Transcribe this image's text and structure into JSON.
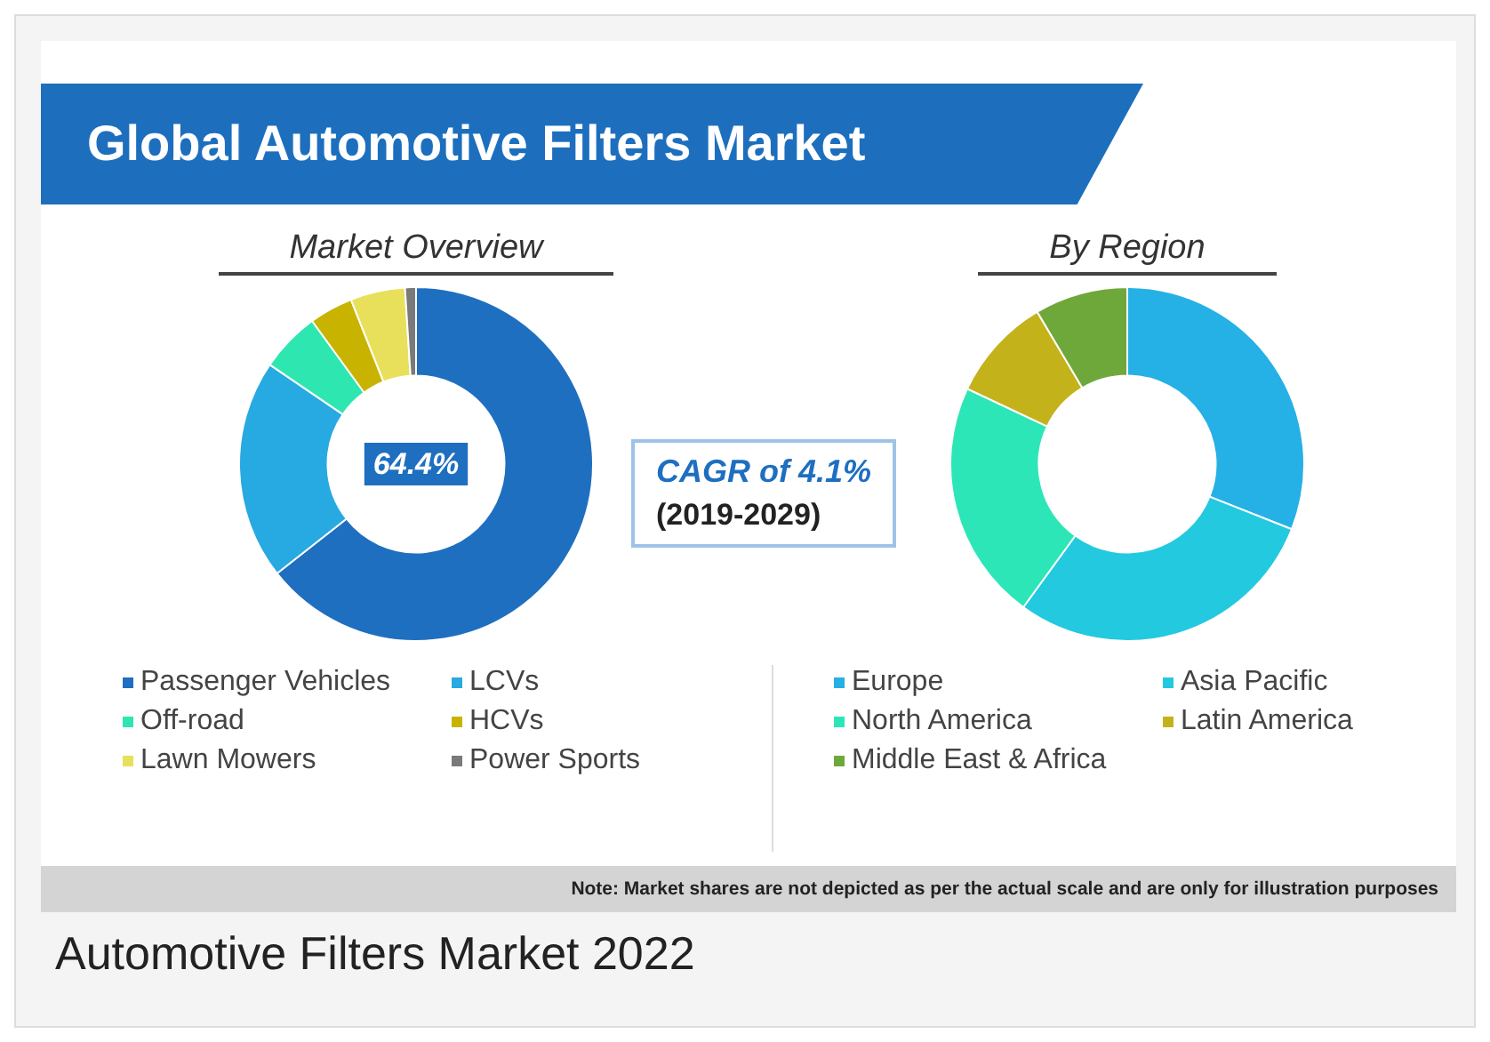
{
  "chart_data": [
    {
      "type": "donut",
      "title": "Global Automotive Filters Market",
      "subtitle": "Market Overview",
      "categories": [
        "Passenger Vehicles",
        "LCVs",
        "Off-road",
        "HCVs",
        "Lawn Mowers",
        "Power Sports"
      ],
      "values": [
        64.4,
        20.1,
        5.5,
        4,
        5,
        1
      ],
      "colors": [
        "#1e6fc0",
        "#27a9e1",
        "#2ee6b0",
        "#c8b400",
        "#e8e05a",
        "#7a7a7a"
      ],
      "value_labels": [
        "64.4%",
        null,
        null,
        null,
        null,
        null
      ],
      "legend": "bottom"
    },
    {
      "type": "other",
      "annotations": [
        "CAGR of 4.1%",
        "(2019-2029)"
      ]
    },
    {
      "type": "donut",
      "title": "By Region",
      "categories": [
        "Europe",
        "Asia Pacific",
        "North America",
        "Latin America",
        "Middle East & Africa"
      ],
      "values": [
        31,
        29,
        22,
        9.5,
        8.5
      ],
      "colors": [
        "#25b0e6",
        "#22c9df",
        "#2de6b8",
        "#c4b21a",
        "#6fa83a"
      ],
      "legend": "bottom",
      "annotations": [
        "Note: Market shares are not depicted as per the actual scale and are only for illustration purposes",
        "Automotive Filters Market 2022"
      ]
    }
  ]
}
